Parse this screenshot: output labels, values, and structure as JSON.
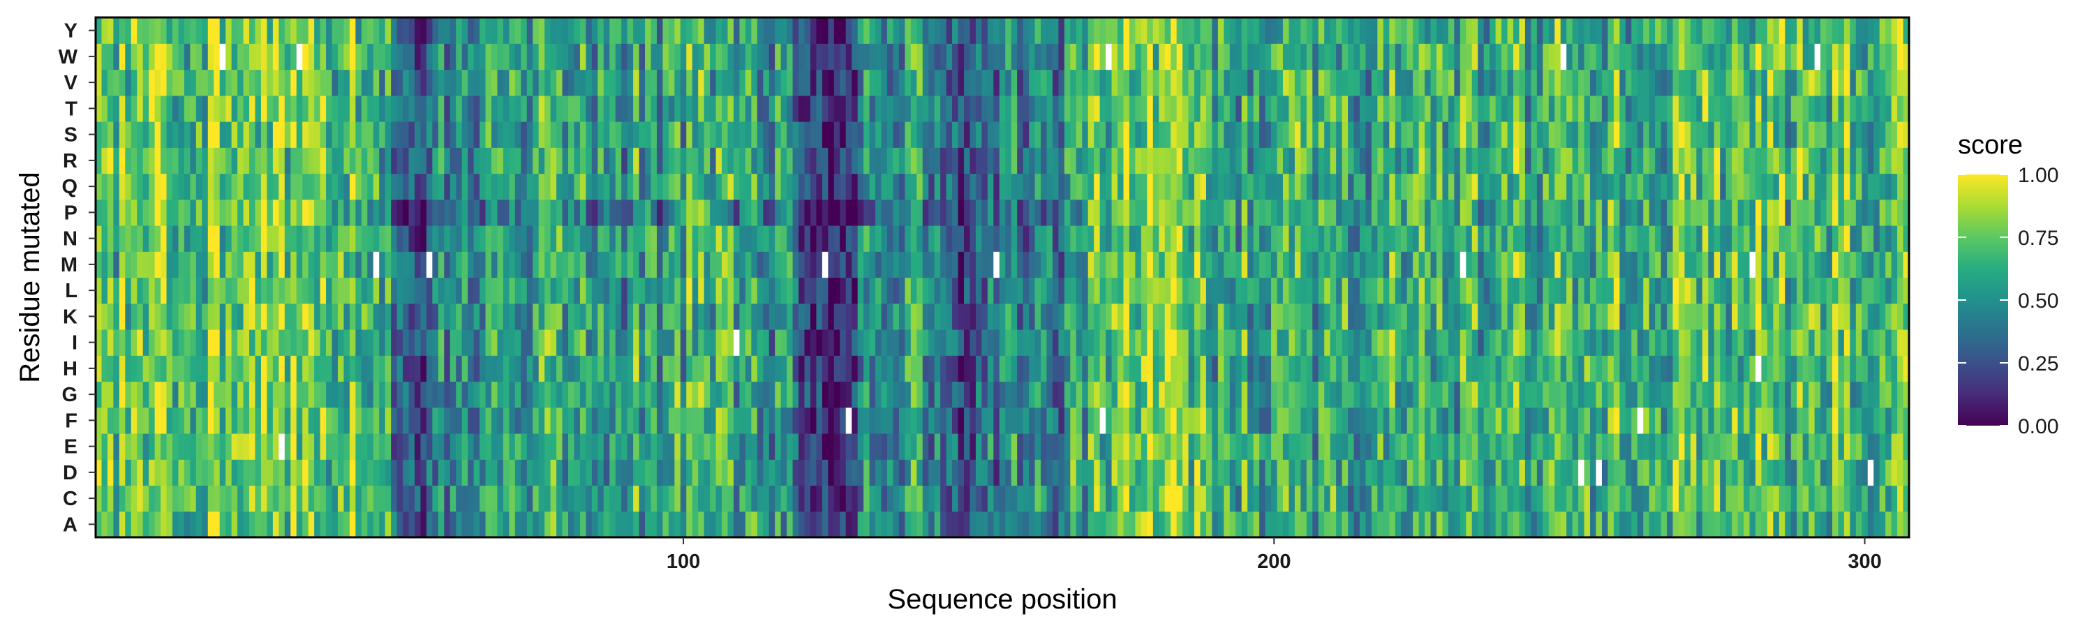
{
  "chart_data": {
    "type": "heatmap",
    "title": "",
    "xlabel": "Sequence position",
    "ylabel": "Residue mutated",
    "x_range": [
      1,
      307
    ],
    "x_ticks": [
      100,
      200,
      300
    ],
    "residues": [
      "A",
      "C",
      "D",
      "E",
      "F",
      "G",
      "H",
      "I",
      "K",
      "L",
      "M",
      "N",
      "P",
      "Q",
      "R",
      "S",
      "T",
      "V",
      "W",
      "Y"
    ],
    "color_scale": {
      "name": "viridis",
      "title": "score",
      "range": [
        0,
        1
      ],
      "ticks": [
        "0.00",
        "0.25",
        "0.50",
        "0.75",
        "1.00"
      ],
      "low_color": "#440154",
      "high_color": "#fde725",
      "missing_color": "#ffffff"
    },
    "column_mean_score": [
      [
        1,
        0.72
      ],
      [
        20,
        0.78
      ],
      [
        40,
        0.74
      ],
      [
        50,
        0.58
      ],
      [
        54,
        0.32
      ],
      [
        56,
        0.3
      ],
      [
        60,
        0.55
      ],
      [
        70,
        0.5
      ],
      [
        80,
        0.6
      ],
      [
        90,
        0.55
      ],
      [
        100,
        0.62
      ],
      [
        110,
        0.58
      ],
      [
        118,
        0.45
      ],
      [
        122,
        0.12
      ],
      [
        126,
        0.1
      ],
      [
        128,
        0.18
      ],
      [
        132,
        0.55
      ],
      [
        140,
        0.62
      ],
      [
        145,
        0.3
      ],
      [
        148,
        0.25
      ],
      [
        155,
        0.55
      ],
      [
        162,
        0.38
      ],
      [
        170,
        0.7
      ],
      [
        178,
        0.82
      ],
      [
        185,
        0.88
      ],
      [
        187,
        0.62
      ],
      [
        200,
        0.6
      ],
      [
        220,
        0.62
      ],
      [
        240,
        0.64
      ],
      [
        260,
        0.66
      ],
      [
        280,
        0.68
      ],
      [
        307,
        0.68
      ]
    ],
    "column_spread": 0.22,
    "missing_cells": [
      {
        "x": 22,
        "residue": "W"
      },
      {
        "x": 35,
        "residue": "W"
      },
      {
        "x": 172,
        "residue": "W"
      },
      {
        "x": 249,
        "residue": "W"
      },
      {
        "x": 292,
        "residue": "W"
      },
      {
        "x": 48,
        "residue": "M"
      },
      {
        "x": 57,
        "residue": "M"
      },
      {
        "x": 124,
        "residue": "M"
      },
      {
        "x": 153,
        "residue": "M"
      },
      {
        "x": 232,
        "residue": "M"
      },
      {
        "x": 281,
        "residue": "M"
      },
      {
        "x": 109,
        "residue": "I"
      },
      {
        "x": 282,
        "residue": "H"
      },
      {
        "x": 128,
        "residue": "F"
      },
      {
        "x": 171,
        "residue": "F"
      },
      {
        "x": 262,
        "residue": "F"
      },
      {
        "x": 32,
        "residue": "E"
      },
      {
        "x": 252,
        "residue": "D"
      },
      {
        "x": 255,
        "residue": "D"
      },
      {
        "x": 301,
        "residue": "D"
      }
    ]
  }
}
